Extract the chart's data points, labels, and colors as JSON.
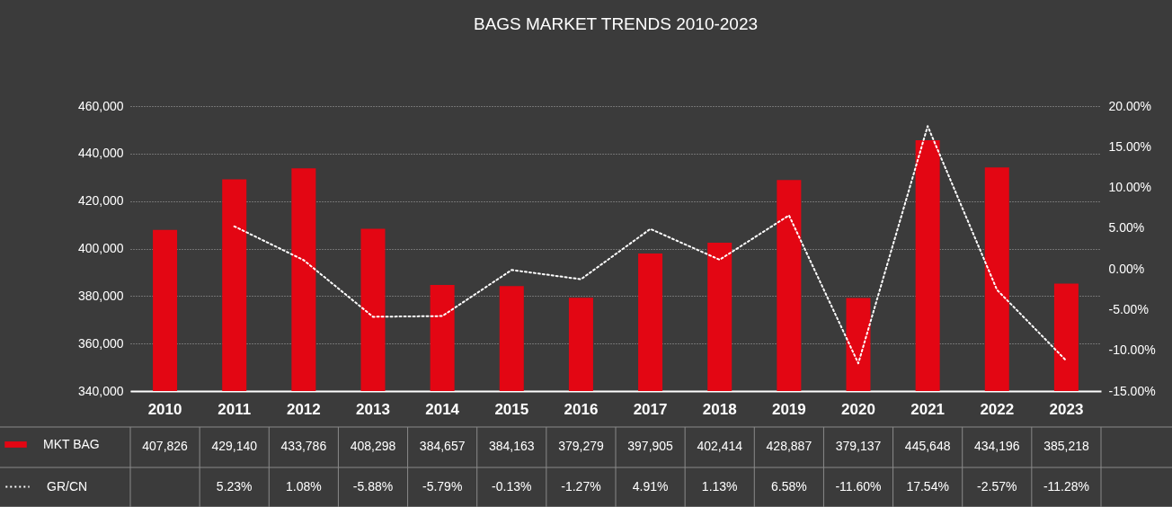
{
  "chart_data": {
    "type": "bar",
    "title": "BAGS MARKET TRENDS 2010-2023",
    "categories": [
      "2010",
      "2011",
      "2012",
      "2013",
      "2014",
      "2015",
      "2016",
      "2017",
      "2018",
      "2019",
      "2020",
      "2021",
      "2022",
      "2023"
    ],
    "series": [
      {
        "name": "MKT BAG",
        "color": "#e30613",
        "values": [
          407826,
          429140,
          433786,
          408298,
          384657,
          384163,
          379279,
          397905,
          402414,
          428887,
          379137,
          445648,
          434196,
          385218
        ],
        "value_labels": [
          "407,826",
          "429,140",
          "433,786",
          "408,298",
          "384,657",
          "384,163",
          "379,279",
          "397,905",
          "402,414",
          "428,887",
          "379,137",
          "445,648",
          "434,196",
          "385,218"
        ]
      },
      {
        "name": "GR/CN",
        "type": "line",
        "axis": "y2",
        "color": "#ffffff",
        "values": [
          null,
          5.23,
          1.08,
          -5.88,
          -5.79,
          -0.13,
          -1.27,
          4.91,
          1.13,
          6.58,
          -11.6,
          17.54,
          -2.57,
          -11.28
        ],
        "value_labels": [
          null,
          "5.23%",
          "1.08%",
          "-5.88%",
          "-5.79%",
          "-0.13%",
          "-1.27%",
          "4.91%",
          "1.13%",
          "6.58%",
          "-11.60%",
          "17.54%",
          "-2.57%",
          "-11.28%"
        ]
      }
    ],
    "ylim": [
      340000,
      460000
    ],
    "yticks": [
      {
        "value": 340000,
        "label": "340,000"
      },
      {
        "value": 360000,
        "label": "360,000"
      },
      {
        "value": 380000,
        "label": "380,000"
      },
      {
        "value": 400000,
        "label": "400,000"
      },
      {
        "value": 420000,
        "label": "420,000"
      },
      {
        "value": 440000,
        "label": "440,000"
      },
      {
        "value": 460000,
        "label": "460,000"
      }
    ],
    "y2lim": [
      -15,
      20
    ],
    "y2ticks": [
      {
        "value": -15,
        "label": "-15.00%"
      },
      {
        "value": -10,
        "label": "-10.00%"
      },
      {
        "value": -5,
        "label": "-5.00%"
      },
      {
        "value": 0,
        "label": "0.00%"
      },
      {
        "value": 5,
        "label": "5.00%"
      },
      {
        "value": 10,
        "label": "10.00%"
      },
      {
        "value": 15,
        "label": "15.00%"
      },
      {
        "value": 20,
        "label": "20.00%"
      }
    ],
    "grid": "y",
    "legend": "bottom left",
    "line_style": "dotted"
  }
}
